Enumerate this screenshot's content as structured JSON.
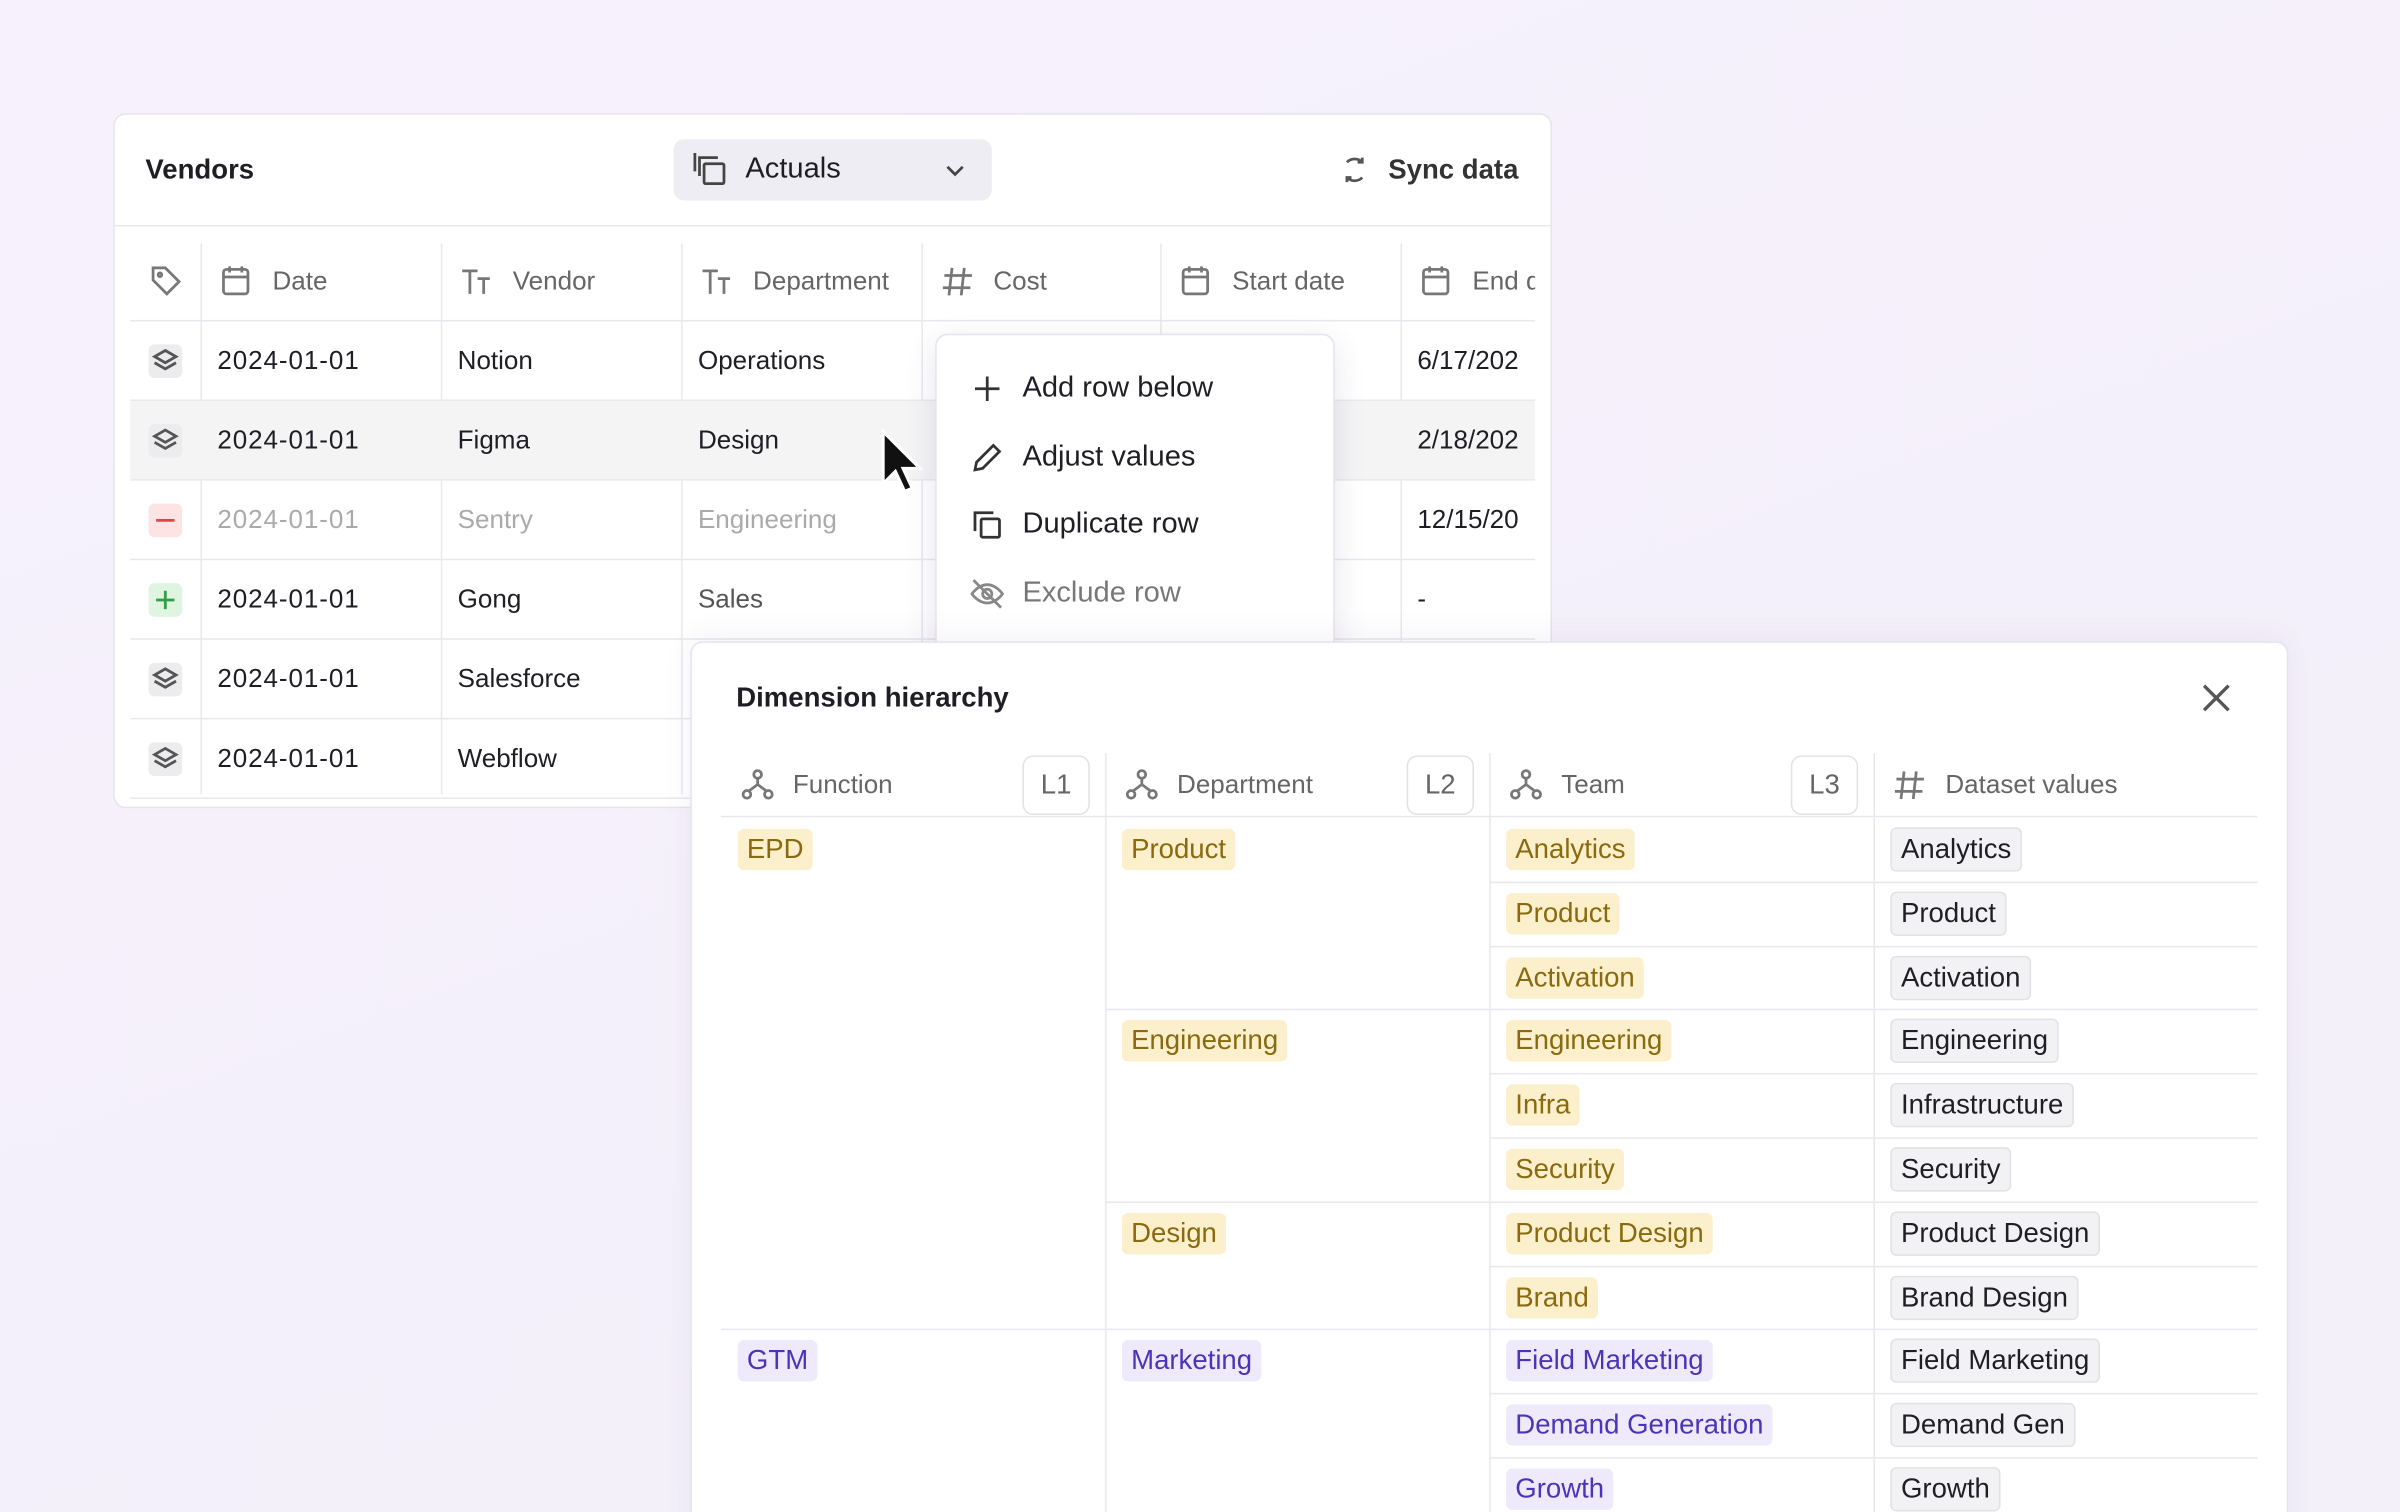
{
  "vendors": {
    "title": "Vendors",
    "view": "Actuals",
    "sync": "Sync data",
    "columns": [
      "Date",
      "Vendor",
      "Department",
      "Cost",
      "Start date",
      "End d"
    ],
    "rows": [
      {
        "date": "2024-01-01",
        "vendor": "Notion",
        "department": "Operations",
        "end": "6/17/202"
      },
      {
        "date": "2024-01-01",
        "vendor": "Figma",
        "department": "Design",
        "end": "2/18/202"
      },
      {
        "date": "2024-01-01",
        "vendor": "Sentry",
        "department": "Engineering",
        "end": "12/15/20"
      },
      {
        "date": "2024-01-01",
        "vendor": "Gong",
        "department": "Sales",
        "end": "-"
      },
      {
        "date": "2024-01-01",
        "vendor": "Salesforce"
      },
      {
        "date": "2024-01-01",
        "vendor": "Webflow"
      }
    ]
  },
  "menu": {
    "items": [
      "Add row below",
      "Adjust values",
      "Duplicate row",
      "Exclude row"
    ]
  },
  "hierarchy": {
    "title": "Dimension hierarchy",
    "columns": [
      {
        "name": "Function",
        "level": "L1"
      },
      {
        "name": "Department",
        "level": "L2"
      },
      {
        "name": "Team",
        "level": "L3"
      },
      {
        "name": "Dataset values"
      }
    ],
    "groups": [
      {
        "function": "EPD",
        "departments": [
          {
            "name": "Product",
            "teams": [
              {
                "team": "Analytics",
                "value": "Analytics"
              },
              {
                "team": "Product",
                "value": "Product"
              },
              {
                "team": "Activation",
                "value": "Activation"
              }
            ]
          },
          {
            "name": "Engineering",
            "teams": [
              {
                "team": "Engineering",
                "value": "Engineering"
              },
              {
                "team": "Infra",
                "value": "Infrastructure"
              },
              {
                "team": "Security",
                "value": "Security"
              }
            ]
          },
          {
            "name": "Design",
            "teams": [
              {
                "team": "Product Design",
                "value": "Product Design"
              },
              {
                "team": "Brand",
                "value": "Brand Design"
              }
            ]
          }
        ]
      },
      {
        "function": "GTM",
        "departments": [
          {
            "name": "Marketing",
            "teams": [
              {
                "team": "Field Marketing",
                "value": "Field Marketing"
              },
              {
                "team": "Demand Generation",
                "value": "Demand Gen"
              },
              {
                "team": "Growth",
                "value": "Growth"
              }
            ]
          }
        ]
      }
    ]
  }
}
